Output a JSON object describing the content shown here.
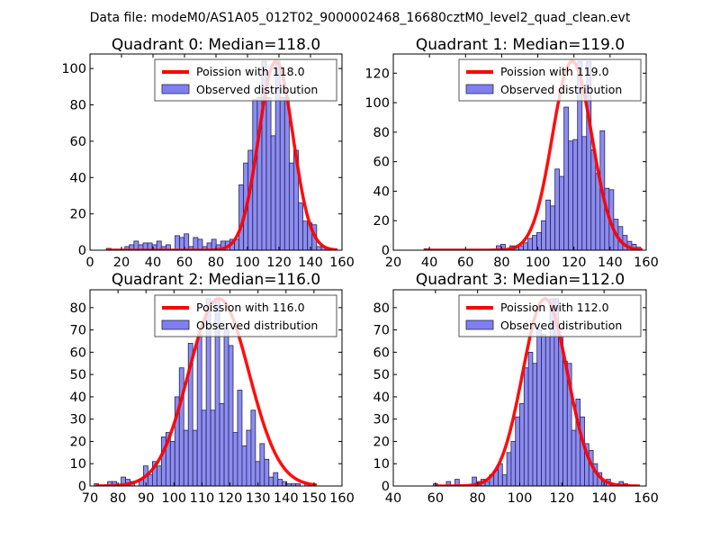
{
  "figure": {
    "suptitle": "Data file: modeM0/AS1A05_012T02_9000002468_16680cztM0_level2_quad_clean.evt"
  },
  "colors": {
    "bar_fill": "#7f7ff2",
    "bar_edge": "#26264d",
    "curve": "#ff0000",
    "frame": "#000000",
    "legend_edge": "#555555"
  },
  "chart_data": [
    {
      "type": "bar",
      "title": "Quadrant 0: Median=118.0",
      "xlim": [
        0,
        160
      ],
      "ylim": [
        0,
        108
      ],
      "xticks": [
        0,
        20,
        40,
        60,
        80,
        100,
        120,
        140,
        160
      ],
      "yticks": [
        0,
        20,
        40,
        60,
        80,
        100
      ],
      "legend": {
        "position": "top-right",
        "entries": [
          "Poission with 118.0",
          "Observed distribution"
        ]
      },
      "median": 118,
      "bin_start": 10.5,
      "bin_width": 2.9,
      "values": [
        1,
        0,
        0,
        0,
        2,
        3,
        5,
        3,
        4,
        4,
        3,
        5,
        2,
        3,
        0,
        8,
        7,
        9,
        2,
        7,
        6,
        2,
        4,
        6,
        3,
        5,
        5,
        6,
        6,
        36,
        48,
        55,
        83,
        84,
        104,
        84,
        63,
        104,
        84,
        84,
        48,
        55,
        26,
        16,
        15,
        14,
        2,
        2
      ],
      "curve": {
        "mu": 118,
        "peak": 104,
        "x_range": [
          10,
          157
        ]
      }
    },
    {
      "type": "bar",
      "title": "Quadrant 1: Median=119.0",
      "xlim": [
        20,
        160
      ],
      "ylim": [
        0,
        133
      ],
      "xticks": [
        20,
        40,
        60,
        80,
        100,
        120,
        140,
        160
      ],
      "yticks": [
        0,
        20,
        40,
        60,
        80,
        100,
        120
      ],
      "legend": {
        "position": "top-right",
        "entries": [
          "Poission with 119.0",
          "Observed distribution"
        ]
      },
      "median": 119,
      "bin_start": 37,
      "bin_width": 2.5,
      "values": [
        1,
        0,
        0,
        0,
        0,
        0,
        0,
        0,
        0,
        0,
        0,
        0,
        0,
        0,
        0,
        0,
        3,
        4,
        0,
        3,
        2,
        3,
        5,
        8,
        10,
        12,
        20,
        34,
        30,
        55,
        50,
        97,
        74,
        75,
        128,
        77,
        128,
        68,
        52,
        81,
        42,
        41,
        21,
        16,
        10,
        6,
        4,
        2
      ],
      "curve": {
        "mu": 119,
        "peak": 128,
        "x_range": [
          37,
          158
        ]
      }
    },
    {
      "type": "bar",
      "title": "Quadrant 2: Median=116.0",
      "xlim": [
        70,
        160
      ],
      "ylim": [
        0,
        88
      ],
      "xticks": [
        70,
        80,
        90,
        100,
        110,
        120,
        130,
        140,
        150,
        160
      ],
      "yticks": [
        0,
        10,
        20,
        30,
        40,
        50,
        60,
        70,
        80
      ],
      "legend": {
        "position": "top-right",
        "entries": [
          "Poission with 116.0",
          "Observed distribution"
        ]
      },
      "median": 116,
      "bin_start": 71.5,
      "bin_width": 1.6,
      "values": [
        1,
        0,
        0,
        2,
        2,
        0,
        4,
        3,
        2,
        0,
        3,
        9,
        5,
        11,
        9,
        22,
        24,
        20,
        40,
        53,
        25,
        64,
        25,
        68,
        34,
        84,
        34,
        84,
        37,
        71,
        63,
        24,
        43,
        18,
        25,
        34,
        11,
        19,
        12,
        4,
        6,
        3,
        2,
        1,
        1,
        1,
        0,
        1
      ],
      "curve": {
        "mu": 116,
        "peak": 84,
        "x_range": [
          72,
          151
        ]
      }
    },
    {
      "type": "bar",
      "title": "Quadrant 3: Median=112.0",
      "xlim": [
        40,
        160
      ],
      "ylim": [
        0,
        88
      ],
      "xticks": [
        40,
        60,
        80,
        100,
        120,
        140,
        160
      ],
      "yticks": [
        0,
        10,
        20,
        30,
        40,
        50,
        60,
        70,
        80
      ],
      "legend": {
        "position": "top-right",
        "entries": [
          "Poission with 112.0",
          "Observed distribution"
        ]
      },
      "median": 112,
      "bin_start": 59,
      "bin_width": 2.05,
      "values": [
        1,
        0,
        0,
        2,
        0,
        3,
        0,
        0,
        0,
        4,
        2,
        3,
        2,
        5,
        7,
        10,
        5,
        15,
        20,
        31,
        37,
        53,
        60,
        55,
        70,
        68,
        67,
        84,
        84,
        67,
        56,
        55,
        25,
        39,
        31,
        19,
        16,
        10,
        6,
        2,
        3,
        1,
        1,
        2,
        1,
        0,
        0,
        0
      ],
      "curve": {
        "mu": 112,
        "peak": 84,
        "x_range": [
          60,
          157
        ]
      }
    }
  ]
}
